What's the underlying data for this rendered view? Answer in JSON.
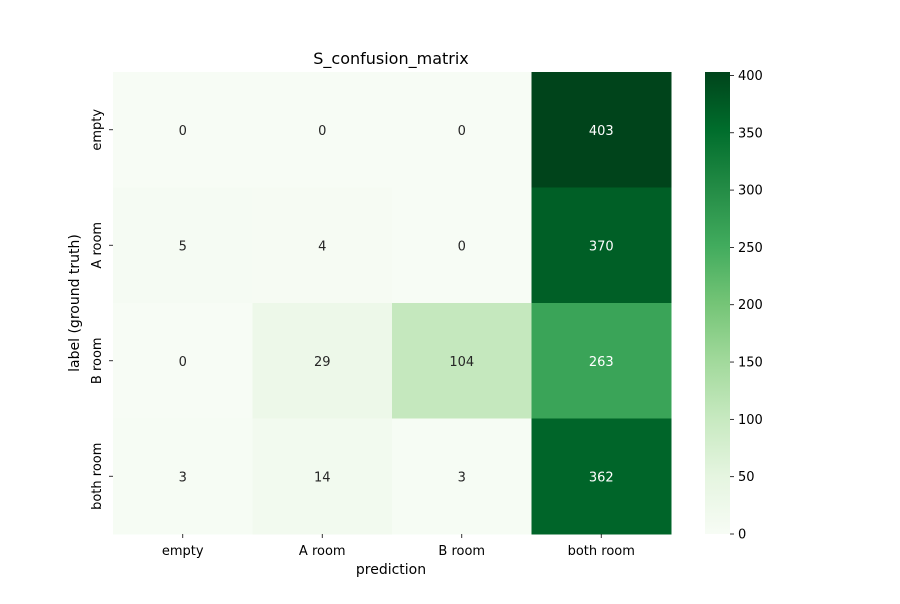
{
  "chart_data": {
    "type": "heatmap",
    "title": "S_confusion_matrix",
    "xlabel": "prediction",
    "ylabel": "label (ground truth)",
    "x_categories": [
      "empty",
      "A room",
      "B room",
      "both room"
    ],
    "y_categories": [
      "empty",
      "A room",
      "B room",
      "both room"
    ],
    "values": [
      [
        0,
        0,
        0,
        403
      ],
      [
        5,
        4,
        0,
        370
      ],
      [
        0,
        29,
        104,
        263
      ],
      [
        3,
        14,
        3,
        362
      ]
    ],
    "colormap": "Greens",
    "colorbar": {
      "range": [
        0,
        403
      ],
      "ticks": [
        0,
        50,
        100,
        150,
        200,
        250,
        300,
        350,
        400
      ]
    },
    "colors": {
      "low": "#f7fcf5",
      "high": "#00441b",
      "annotation_dark": "#262626",
      "annotation_light": "#ffffff"
    }
  }
}
